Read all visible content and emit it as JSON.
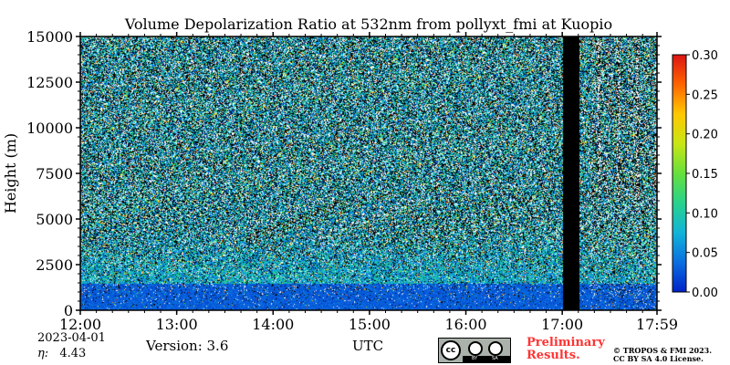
{
  "chart_data": {
    "type": "heatmap",
    "title": "Volume Depolarization Ratio at 532nm from pollyxt_fmi at Kuopio",
    "ylabel": "Height (m)",
    "xlabel": "UTC",
    "x_tick_labels": [
      "12:00",
      "13:00",
      "14:00",
      "15:00",
      "16:00",
      "17:00",
      "17:59"
    ],
    "x_tick_hours": [
      12.0,
      13.0,
      14.0,
      15.0,
      16.0,
      17.0,
      17.983
    ],
    "xlim_hours": [
      12.0,
      17.983
    ],
    "y_ticks": [
      0,
      2500,
      5000,
      7500,
      10000,
      12500,
      15000
    ],
    "y_tick_labels": [
      "0",
      "2500",
      "5000",
      "7500",
      "10000",
      "12500",
      "15000"
    ],
    "ylim": [
      0,
      15000
    ],
    "colorbar": {
      "min": 0.0,
      "max": 0.3,
      "ticks": [
        0.0,
        0.05,
        0.1,
        0.15,
        0.2,
        0.25,
        0.3
      ],
      "tick_labels": [
        "0.00",
        "0.05",
        "0.10",
        "0.15",
        "0.20",
        "0.25",
        "0.30"
      ],
      "colormap": [
        "#0022c8",
        "#0a6ee0",
        "#12b4d8",
        "#28d28c",
        "#66e03c",
        "#c8e614",
        "#ffc800",
        "#ff6400",
        "#dc1414"
      ]
    },
    "field_description": {
      "boundary_layer_top_m": 1500,
      "surface_depolarization": 0.03,
      "no_data_gap_hours": [
        17.0,
        17.17
      ]
    },
    "colors": {
      "no_data": "#000000",
      "background_noise": "#ffffff"
    }
  },
  "footer": {
    "date": "2023-04-01",
    "eta_label": "η:",
    "eta_value": "4.43",
    "version": "Version: 3.6",
    "preliminary": "Preliminary Results.",
    "copyright_line1": "© TROPOS & FMI 2023.",
    "copyright_line2": "CC BY SA 4.0 License.",
    "cc_badge": {
      "cc": "cc",
      "by": "BY",
      "sa": "SA"
    }
  }
}
